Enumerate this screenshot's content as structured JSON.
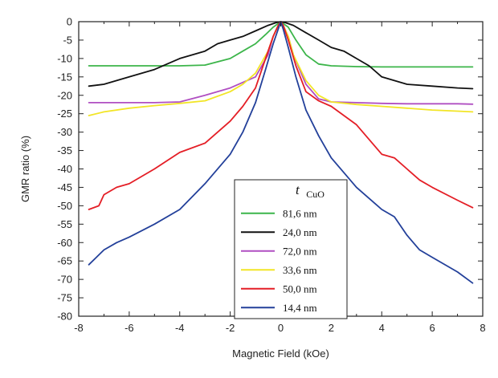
{
  "chart_data": {
    "type": "line",
    "xlabel": "Magnetic Field (kOe)",
    "ylabel": "GMR ratio (%)",
    "xlim": [
      -8,
      8
    ],
    "ylim": [
      -80,
      0
    ],
    "xticks": [
      -8,
      -6,
      -4,
      -2,
      0,
      2,
      4,
      6,
      8
    ],
    "yticks": [
      0,
      -5,
      -10,
      -15,
      -20,
      -25,
      -30,
      -35,
      -40,
      -45,
      -50,
      -55,
      -60,
      -65,
      -70,
      -75,
      -80
    ],
    "grid": false,
    "legend": {
      "placement": "lower-center",
      "title_symbol": "t",
      "title_subscript": "CuO"
    },
    "series": [
      {
        "name": "81,6 nm",
        "color": "#3cb54a",
        "x": [
          -7.6,
          -7,
          -6,
          -5,
          -4,
          -3,
          -2,
          -1.5,
          -1,
          -0.6,
          -0.3,
          -0.1,
          0,
          0.1,
          0.3,
          0.6,
          1,
          1.5,
          2,
          3,
          4,
          5,
          6,
          7,
          7.6
        ],
        "y": [
          -12,
          -12,
          -12,
          -12,
          -12,
          -11.8,
          -10,
          -8,
          -6,
          -3.5,
          -1.5,
          -0.5,
          0,
          -0.5,
          -1.5,
          -5,
          -9,
          -11.5,
          -12,
          -12.2,
          -12.3,
          -12.3,
          -12.3,
          -12.3,
          -12.3
        ]
      },
      {
        "name": "24,0 nm",
        "color": "#111111",
        "x": [
          -7.6,
          -7,
          -6,
          -5,
          -4,
          -3,
          -2.5,
          -2,
          -1.5,
          -1,
          -0.5,
          -0.2,
          0,
          0.2,
          0.5,
          1,
          1.5,
          2,
          2.5,
          3,
          3.5,
          4,
          4.5,
          5,
          6,
          7,
          7.6
        ],
        "y": [
          -17.5,
          -17,
          -15,
          -13,
          -10,
          -8,
          -6,
          -5,
          -4,
          -2.5,
          -1,
          -0.3,
          0,
          -0.3,
          -1,
          -3,
          -5,
          -7,
          -8,
          -10,
          -12,
          -15,
          -16,
          -17,
          -17.5,
          -18,
          -18.2
        ]
      },
      {
        "name": "72,0 nm",
        "color": "#b04fc2",
        "x": [
          -7.6,
          -7,
          -6,
          -5,
          -4,
          -3,
          -2,
          -1.5,
          -1,
          -0.5,
          -0.3,
          -0.1,
          0,
          0.1,
          0.3,
          0.5,
          1,
          1.5,
          2,
          3,
          4,
          5,
          6,
          7,
          7.6
        ],
        "y": [
          -22,
          -22,
          -22,
          -22,
          -21.8,
          -20,
          -18,
          -16.5,
          -15,
          -9,
          -4,
          -1,
          0,
          -1,
          -4,
          -9,
          -17,
          -21,
          -21.8,
          -22,
          -22.2,
          -22.3,
          -22.3,
          -22.3,
          -22.4
        ]
      },
      {
        "name": "33,6 nm",
        "color": "#f2e526",
        "x": [
          -7.6,
          -7,
          -6,
          -5,
          -4,
          -3,
          -2,
          -1.5,
          -1,
          -0.5,
          -0.3,
          -0.1,
          0,
          0.1,
          0.3,
          0.5,
          1,
          1.5,
          2,
          3,
          4,
          5,
          6,
          7,
          7.6
        ],
        "y": [
          -25.5,
          -24.5,
          -23.5,
          -22.8,
          -22.2,
          -21.5,
          -19,
          -17,
          -14,
          -8,
          -4,
          -1,
          0,
          -1,
          -4,
          -9,
          -16,
          -20,
          -21.8,
          -22.5,
          -23,
          -23.5,
          -24,
          -24.3,
          -24.5
        ]
      },
      {
        "name": "50,0 nm",
        "color": "#e41e26",
        "x": [
          -7.6,
          -7.2,
          -7,
          -6.5,
          -6,
          -5,
          -4,
          -3,
          -2,
          -1.5,
          -1,
          -0.6,
          -0.3,
          -0.1,
          0,
          0.1,
          0.3,
          0.6,
          1,
          1.5,
          2,
          3,
          4,
          4.5,
          5,
          5.5,
          6,
          7,
          7.6
        ],
        "y": [
          -51,
          -50,
          -47,
          -45,
          -44,
          -40,
          -35.5,
          -33,
          -27,
          -23,
          -18,
          -10,
          -4,
          -1,
          0,
          -1,
          -5,
          -12,
          -19,
          -21.5,
          -23,
          -28,
          -36,
          -37,
          -40,
          -43,
          -45,
          -48.5,
          -50.5
        ]
      },
      {
        "name": "14,4 nm",
        "color": "#23409a",
        "x": [
          -7.6,
          -7.3,
          -7,
          -6.5,
          -6,
          -5,
          -4,
          -3,
          -2,
          -1.5,
          -1,
          -0.6,
          -0.3,
          -0.1,
          0,
          0.1,
          0.3,
          0.6,
          1,
          1.5,
          2,
          3,
          4,
          4.5,
          5,
          5.5,
          6,
          7,
          7.6
        ],
        "y": [
          -66,
          -64,
          -62,
          -60,
          -58.5,
          -55,
          -51,
          -44,
          -36,
          -30,
          -22,
          -13,
          -6,
          -2,
          0,
          -2,
          -7,
          -15,
          -24,
          -31,
          -37,
          -45,
          -51,
          -53,
          -58,
          -62,
          -64,
          -68,
          -71
        ]
      }
    ]
  }
}
